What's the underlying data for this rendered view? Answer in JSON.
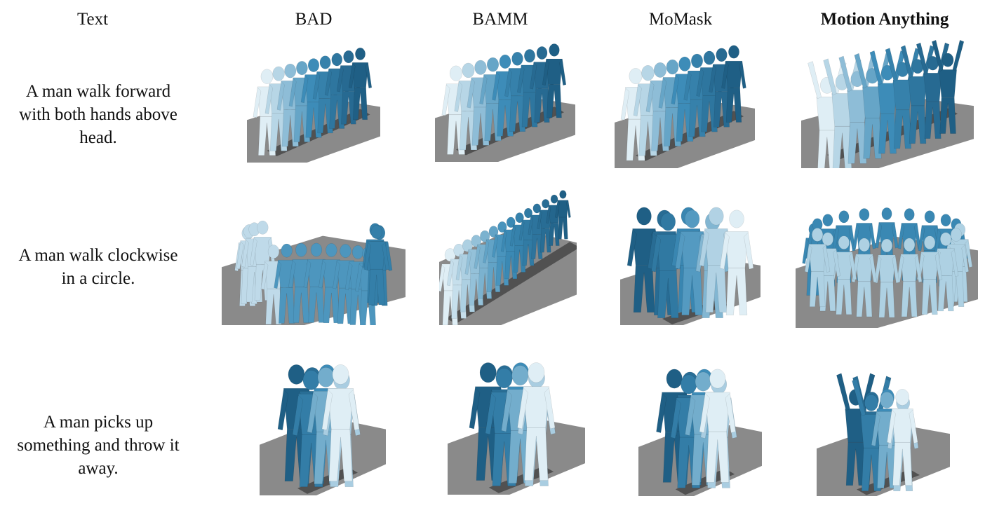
{
  "columns": {
    "text": "Text",
    "bad": "BAD",
    "bamm": "BAMM",
    "momask": "MoMask",
    "motion_anything": "Motion Anything"
  },
  "rows": [
    {
      "prompt_lines": [
        "A man walk forward",
        "with both hands above",
        "head."
      ]
    },
    {
      "prompt_lines": [
        "A man walk clockwise",
        "in a circle."
      ]
    },
    {
      "prompt_lines": [
        "A man picks up",
        "something and throw it",
        "away."
      ]
    }
  ],
  "colors": {
    "floor": "#8a8a8a",
    "floor_dark": "#6f6f6f",
    "shadow": "#2b2b2b",
    "figure_dark": "#1f5f85",
    "figure_mid": "#3d8cb8",
    "figure_light": "#dfeef5"
  }
}
